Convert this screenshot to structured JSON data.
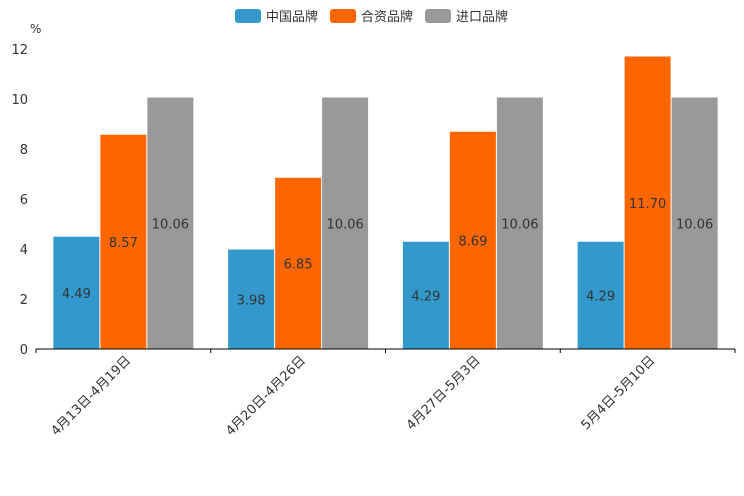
{
  "chart_data": {
    "type": "bar",
    "unit": "%",
    "categories": [
      "4月13日-4月19日",
      "4月20日-4月26日",
      "4月27日-5月3日",
      "5月4日-5月10日"
    ],
    "series": [
      {
        "name": "中国品牌",
        "color": "#3399cc",
        "values": [
          4.49,
          3.98,
          4.29,
          4.29
        ],
        "labels": [
          "4.49",
          "3.98",
          "4.29",
          "4.29"
        ]
      },
      {
        "name": "合资品牌",
        "color": "#ff6600",
        "values": [
          8.57,
          6.85,
          8.69,
          11.7
        ],
        "labels": [
          "8.57",
          "6.85",
          "8.69",
          "11.70"
        ]
      },
      {
        "name": "进口品牌",
        "color": "#999999",
        "values": [
          10.06,
          10.06,
          10.06,
          10.06
        ],
        "labels": [
          "10.06",
          "10.06",
          "10.06",
          "10.06"
        ]
      }
    ],
    "ylim": [
      0,
      12
    ],
    "yticks": [
      "0",
      "2",
      "4",
      "6",
      "8",
      "10",
      "12"
    ],
    "legend_position": "top-center",
    "grid": false
  }
}
